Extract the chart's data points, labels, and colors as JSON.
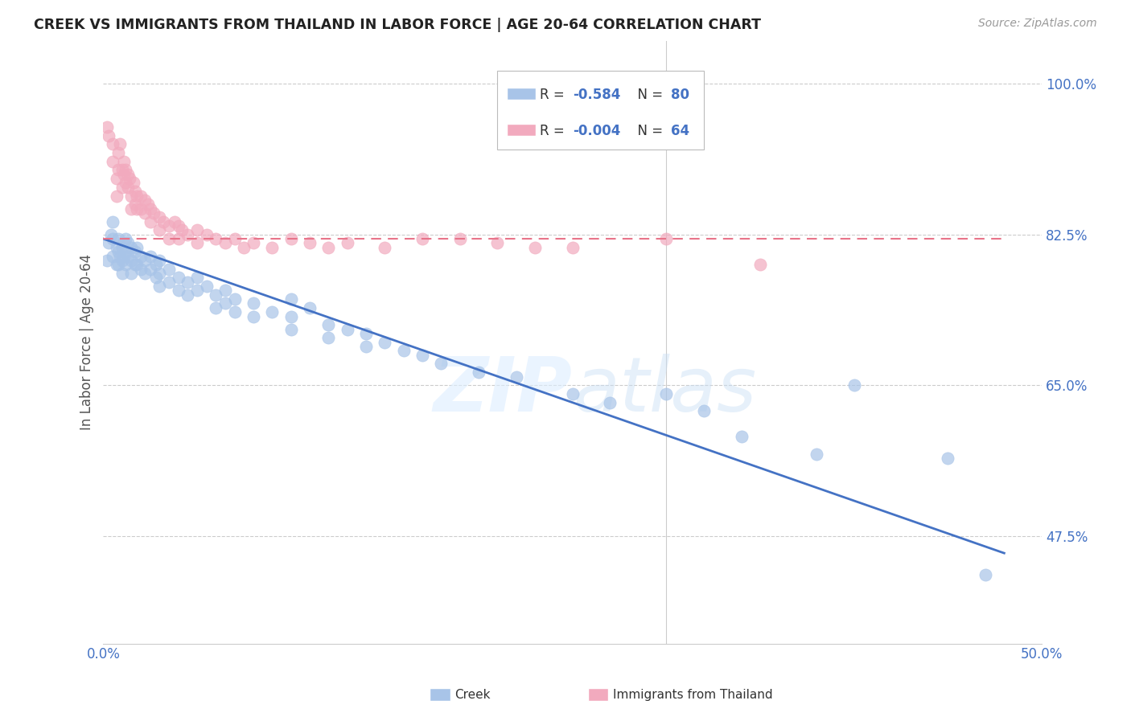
{
  "title": "CREEK VS IMMIGRANTS FROM THAILAND IN LABOR FORCE | AGE 20-64 CORRELATION CHART",
  "source": "Source: ZipAtlas.com",
  "ylabel": "In Labor Force | Age 20-64",
  "xlabel_creek": "Creek",
  "xlabel_thailand": "Immigrants from Thailand",
  "xlim": [
    0.0,
    0.5
  ],
  "ylim": [
    0.35,
    1.05
  ],
  "xticks": [
    0.0,
    0.1,
    0.2,
    0.3,
    0.4,
    0.5
  ],
  "xticklabels": [
    "0.0%",
    "",
    "",
    "",
    "",
    "50.0%"
  ],
  "yticks": [
    0.475,
    0.65,
    0.825,
    1.0
  ],
  "yticklabels": [
    "47.5%",
    "65.0%",
    "82.5%",
    "100.0%"
  ],
  "creek_color": "#a8c4e8",
  "thailand_color": "#f2aabe",
  "creek_line_color": "#4472c4",
  "thailand_line_color": "#e8748a",
  "watermark": "ZIPatlas",
  "creek_points": [
    [
      0.002,
      0.795
    ],
    [
      0.003,
      0.815
    ],
    [
      0.004,
      0.825
    ],
    [
      0.005,
      0.8
    ],
    [
      0.005,
      0.82
    ],
    [
      0.005,
      0.84
    ],
    [
      0.007,
      0.81
    ],
    [
      0.007,
      0.79
    ],
    [
      0.008,
      0.805
    ],
    [
      0.008,
      0.82
    ],
    [
      0.008,
      0.79
    ],
    [
      0.009,
      0.8
    ],
    [
      0.01,
      0.81
    ],
    [
      0.01,
      0.795
    ],
    [
      0.01,
      0.78
    ],
    [
      0.011,
      0.815
    ],
    [
      0.011,
      0.8
    ],
    [
      0.012,
      0.82
    ],
    [
      0.012,
      0.805
    ],
    [
      0.012,
      0.79
    ],
    [
      0.013,
      0.815
    ],
    [
      0.013,
      0.8
    ],
    [
      0.015,
      0.81
    ],
    [
      0.015,
      0.795
    ],
    [
      0.015,
      0.78
    ],
    [
      0.017,
      0.805
    ],
    [
      0.017,
      0.79
    ],
    [
      0.018,
      0.81
    ],
    [
      0.018,
      0.79
    ],
    [
      0.02,
      0.8
    ],
    [
      0.02,
      0.785
    ],
    [
      0.022,
      0.795
    ],
    [
      0.022,
      0.78
    ],
    [
      0.025,
      0.8
    ],
    [
      0.025,
      0.785
    ],
    [
      0.028,
      0.79
    ],
    [
      0.028,
      0.775
    ],
    [
      0.03,
      0.795
    ],
    [
      0.03,
      0.78
    ],
    [
      0.03,
      0.765
    ],
    [
      0.035,
      0.785
    ],
    [
      0.035,
      0.77
    ],
    [
      0.04,
      0.775
    ],
    [
      0.04,
      0.76
    ],
    [
      0.045,
      0.77
    ],
    [
      0.045,
      0.755
    ],
    [
      0.05,
      0.775
    ],
    [
      0.05,
      0.76
    ],
    [
      0.055,
      0.765
    ],
    [
      0.06,
      0.755
    ],
    [
      0.06,
      0.74
    ],
    [
      0.065,
      0.76
    ],
    [
      0.065,
      0.745
    ],
    [
      0.07,
      0.75
    ],
    [
      0.07,
      0.735
    ],
    [
      0.08,
      0.745
    ],
    [
      0.08,
      0.73
    ],
    [
      0.09,
      0.735
    ],
    [
      0.1,
      0.75
    ],
    [
      0.1,
      0.73
    ],
    [
      0.1,
      0.715
    ],
    [
      0.11,
      0.74
    ],
    [
      0.12,
      0.72
    ],
    [
      0.12,
      0.705
    ],
    [
      0.13,
      0.715
    ],
    [
      0.14,
      0.71
    ],
    [
      0.14,
      0.695
    ],
    [
      0.15,
      0.7
    ],
    [
      0.16,
      0.69
    ],
    [
      0.17,
      0.685
    ],
    [
      0.18,
      0.675
    ],
    [
      0.2,
      0.665
    ],
    [
      0.22,
      0.66
    ],
    [
      0.25,
      0.64
    ],
    [
      0.27,
      0.63
    ],
    [
      0.3,
      0.64
    ],
    [
      0.32,
      0.62
    ],
    [
      0.34,
      0.59
    ],
    [
      0.38,
      0.57
    ],
    [
      0.4,
      0.65
    ],
    [
      0.45,
      0.565
    ],
    [
      0.47,
      0.43
    ]
  ],
  "thailand_points": [
    [
      0.002,
      0.95
    ],
    [
      0.003,
      0.94
    ],
    [
      0.005,
      0.93
    ],
    [
      0.005,
      0.91
    ],
    [
      0.007,
      0.89
    ],
    [
      0.007,
      0.87
    ],
    [
      0.008,
      0.92
    ],
    [
      0.008,
      0.9
    ],
    [
      0.009,
      0.93
    ],
    [
      0.01,
      0.9
    ],
    [
      0.01,
      0.88
    ],
    [
      0.011,
      0.91
    ],
    [
      0.011,
      0.895
    ],
    [
      0.012,
      0.9
    ],
    [
      0.012,
      0.885
    ],
    [
      0.013,
      0.895
    ],
    [
      0.013,
      0.88
    ],
    [
      0.014,
      0.89
    ],
    [
      0.015,
      0.87
    ],
    [
      0.015,
      0.855
    ],
    [
      0.016,
      0.885
    ],
    [
      0.017,
      0.875
    ],
    [
      0.017,
      0.86
    ],
    [
      0.018,
      0.87
    ],
    [
      0.018,
      0.855
    ],
    [
      0.02,
      0.87
    ],
    [
      0.02,
      0.855
    ],
    [
      0.022,
      0.865
    ],
    [
      0.022,
      0.85
    ],
    [
      0.024,
      0.86
    ],
    [
      0.025,
      0.855
    ],
    [
      0.025,
      0.84
    ],
    [
      0.027,
      0.85
    ],
    [
      0.03,
      0.845
    ],
    [
      0.03,
      0.83
    ],
    [
      0.032,
      0.84
    ],
    [
      0.035,
      0.835
    ],
    [
      0.035,
      0.82
    ],
    [
      0.038,
      0.84
    ],
    [
      0.04,
      0.835
    ],
    [
      0.04,
      0.82
    ],
    [
      0.042,
      0.83
    ],
    [
      0.045,
      0.825
    ],
    [
      0.05,
      0.83
    ],
    [
      0.05,
      0.815
    ],
    [
      0.055,
      0.825
    ],
    [
      0.06,
      0.82
    ],
    [
      0.065,
      0.815
    ],
    [
      0.07,
      0.82
    ],
    [
      0.075,
      0.81
    ],
    [
      0.08,
      0.815
    ],
    [
      0.09,
      0.81
    ],
    [
      0.1,
      0.82
    ],
    [
      0.11,
      0.815
    ],
    [
      0.12,
      0.81
    ],
    [
      0.13,
      0.815
    ],
    [
      0.15,
      0.81
    ],
    [
      0.17,
      0.82
    ],
    [
      0.19,
      0.82
    ],
    [
      0.21,
      0.815
    ],
    [
      0.23,
      0.81
    ],
    [
      0.25,
      0.81
    ],
    [
      0.3,
      0.82
    ],
    [
      0.35,
      0.79
    ]
  ],
  "creek_line": [
    [
      0.0,
      0.82
    ],
    [
      0.48,
      0.455
    ]
  ],
  "thailand_line": [
    [
      0.0,
      0.82
    ],
    [
      0.48,
      0.82
    ]
  ]
}
